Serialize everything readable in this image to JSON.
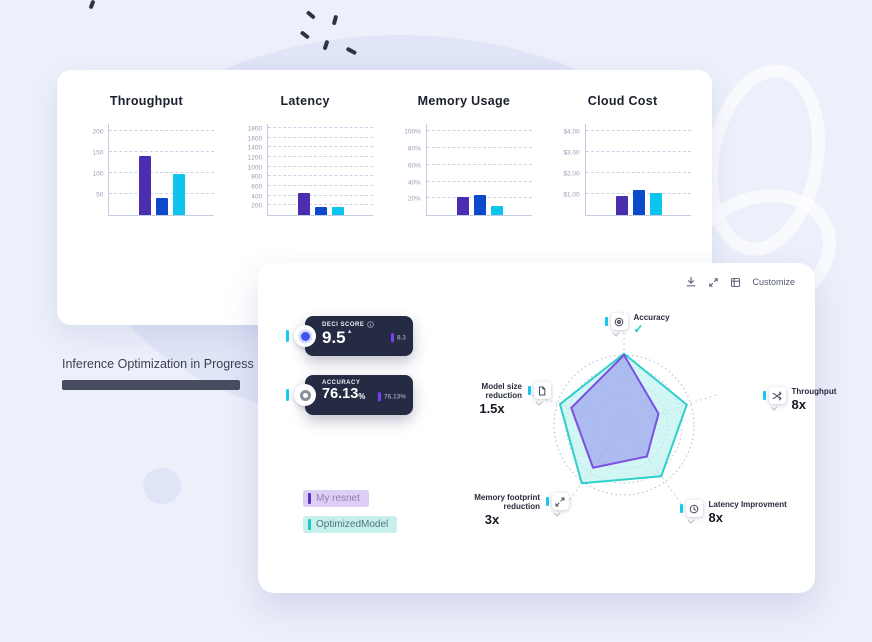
{
  "progress": {
    "label": "Inference Optimization in Progress"
  },
  "toolbar": {
    "customize_label": "Customize",
    "icons": [
      "download-icon",
      "expand-icon",
      "grid-icon"
    ]
  },
  "score_cards": [
    {
      "label": "DECI SCORE",
      "value": "9.5",
      "baseline": "8.3"
    },
    {
      "label": "ACCURACY",
      "value": "76.13",
      "suffix": "%",
      "baseline": "76.13%"
    }
  ],
  "legend": [
    {
      "label": "My resnet",
      "color": "#5b2fc4",
      "bg": "#ddcef6"
    },
    {
      "label": "OptimizedModel",
      "color": "#1ec7c4",
      "bg": "#c7efec"
    }
  ],
  "radar": {
    "metrics": [
      {
        "name": "Accuracy",
        "value": "✓",
        "icon": "target-icon"
      },
      {
        "name": "Throughput",
        "value": "8x",
        "icon": "shuffle-icon"
      },
      {
        "name": "Latency Improvment",
        "value": "8x",
        "icon": "clock-icon"
      },
      {
        "name": "Memory footprint reduction",
        "value": "3x",
        "icon": "expand-arrows-icon"
      },
      {
        "name": "Model size reduction",
        "value": "1.5x",
        "icon": "document-icon"
      }
    ]
  },
  "colors": {
    "bar_purple": "#4b2db0",
    "bar_blue": "#0d49cb",
    "bar_cyan": "#0cc4ee",
    "radar_teal_stroke": "#2fd0cc",
    "radar_purple_stroke": "#7c4fe0",
    "accent_cyan": "#17c8ee",
    "accent_violet": "#7a3ff0",
    "card_dark": "#262b44"
  },
  "chart_data": [
    {
      "type": "bar",
      "title": "Throughput",
      "ytick_labels": [
        "50",
        "100",
        "150",
        "200"
      ],
      "yticks": [
        50,
        100,
        150,
        200
      ],
      "ylim": [
        0,
        220
      ],
      "values": [
        140,
        40,
        97
      ],
      "bar_colors": [
        "#4b2db0",
        "#0d49cb",
        "#0cc4ee"
      ],
      "grid": true
    },
    {
      "type": "bar",
      "title": "Latency",
      "ytick_labels": [
        "200",
        "400",
        "600",
        "800",
        "1000",
        "1200",
        "1400",
        "1600",
        "1800"
      ],
      "yticks": [
        200,
        400,
        600,
        800,
        1000,
        1200,
        1400,
        1600,
        1800
      ],
      "ylim": [
        0,
        1900
      ],
      "values": [
        450,
        165,
        165
      ],
      "bar_colors": [
        "#4b2db0",
        "#0d49cb",
        "#0cc4ee"
      ],
      "grid": true
    },
    {
      "type": "bar",
      "title": "Memory Usage",
      "ytick_labels": [
        "20%",
        "40%",
        "60%",
        "80%",
        "100%"
      ],
      "yticks": [
        20,
        40,
        60,
        80,
        100
      ],
      "ylim": [
        0,
        110
      ],
      "values": [
        21,
        24,
        11
      ],
      "bar_colors": [
        "#4b2db0",
        "#0d49cb",
        "#0cc4ee"
      ],
      "grid": true
    },
    {
      "type": "bar",
      "title": "Cloud Cost",
      "ytick_labels": [
        "$1.00",
        "$2.00",
        "$3.00",
        "$4.00"
      ],
      "yticks": [
        1,
        2,
        3,
        4
      ],
      "ylim": [
        0,
        4.4
      ],
      "values": [
        0.9,
        1.2,
        1.05
      ],
      "bar_colors": [
        "#4b2db0",
        "#0d49cb",
        "#0cc4ee"
      ],
      "grid": true
    },
    {
      "type": "radar",
      "categories": [
        "Accuracy",
        "Throughput",
        "Latency Improvment",
        "Memory footprint reduction",
        "Model size reduction"
      ],
      "category_values": [
        "✓",
        "8x",
        "8x",
        "3x",
        "1.5x"
      ],
      "series": [
        {
          "name": "OptimizedModel",
          "values": [
            1.08,
            1.0,
            0.96,
            1.09,
            1.02
          ],
          "stroke": "#2fd0cc",
          "fill": "rgba(178,240,236,0.58)"
        },
        {
          "name": "My resnet",
          "values": [
            1.06,
            0.55,
            0.59,
            0.8,
            0.84
          ],
          "stroke": "#7c4fe0",
          "fill": "rgba(148,150,237,0.62)"
        }
      ],
      "scale": [
        0,
        1
      ],
      "rings": 4,
      "grid": "dotted-circles"
    }
  ]
}
